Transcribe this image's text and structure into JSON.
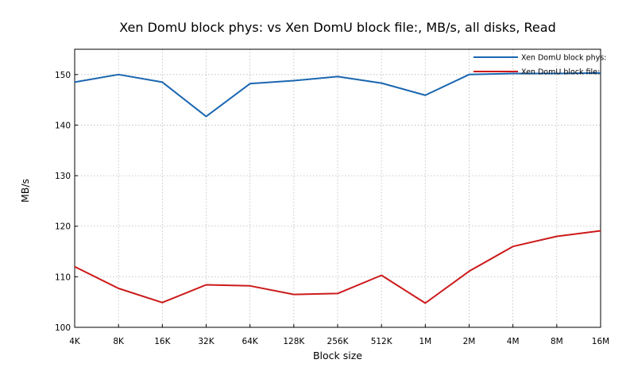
{
  "chart_data": {
    "type": "line",
    "title": "Xen DomU block phys: vs Xen DomU block file:, MB/s, all disks, Read",
    "xlabel": "Block size",
    "ylabel": "MB/s",
    "categories": [
      "4K",
      "8K",
      "16K",
      "32K",
      "64K",
      "128K",
      "256K",
      "512K",
      "1M",
      "2M",
      "4M",
      "8M",
      "16M"
    ],
    "ylim": [
      100,
      155
    ],
    "yticks": [
      100,
      110,
      120,
      130,
      140,
      150
    ],
    "grid": true,
    "legend_position": "top-right",
    "series": [
      {
        "name": "Xen DomU block phys:",
        "color": "#1a66b0",
        "values": [
          148.5,
          150.0,
          148.5,
          141.7,
          148.2,
          148.8,
          149.6,
          148.3,
          145.9,
          150.0,
          150.2,
          150.2,
          150.3
        ]
      },
      {
        "name": "Xen DomU block file:",
        "color": "#cc1a1a",
        "values": [
          112.0,
          107.7,
          104.9,
          108.4,
          108.2,
          106.5,
          106.7,
          110.3,
          104.8,
          111.1,
          116.0,
          118.0,
          119.1
        ]
      }
    ]
  }
}
